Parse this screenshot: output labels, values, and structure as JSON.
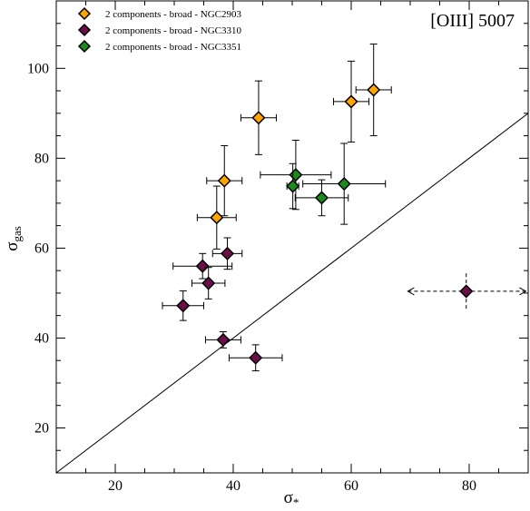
{
  "chart_data": {
    "type": "scatter",
    "title": "[OIII] 5007",
    "xlabel": "σ",
    "xlabel_sub": "*",
    "ylabel": "σ",
    "ylabel_sub": "gas",
    "xlim": [
      10,
      90
    ],
    "ylim": [
      10,
      115
    ],
    "xticks": [
      20,
      40,
      60,
      80
    ],
    "yticks": [
      20,
      40,
      60,
      80,
      100
    ],
    "grid": false,
    "legend_position": "top-left",
    "reference_line": {
      "label": "",
      "x": [
        10,
        90
      ],
      "y": [
        10,
        90
      ]
    },
    "series": [
      {
        "name": "2 components - broad - NGC2903",
        "color": "#ffa500",
        "points": [
          {
            "x": 44.3,
            "y": 89.0,
            "xerr": 3.0,
            "yerr": 8.2
          },
          {
            "x": 60.0,
            "y": 92.6,
            "xerr": 3.0,
            "yerr": 9.0
          },
          {
            "x": 63.8,
            "y": 95.2,
            "xerr": 3.0,
            "yerr": 10.2
          },
          {
            "x": 38.5,
            "y": 75.0,
            "xerr": 3.0,
            "yerr": 7.8
          },
          {
            "x": 37.2,
            "y": 66.8,
            "xerr": 3.3,
            "yerr": 7.0
          }
        ]
      },
      {
        "name": "2 components - broad - NGC3310",
        "color": "#6b0f4b",
        "points": [
          {
            "x": 34.8,
            "y": 56.0,
            "xerr": 5.0,
            "yerr": 2.8
          },
          {
            "x": 35.8,
            "y": 52.2,
            "xerr": 2.8,
            "yerr": 3.5
          },
          {
            "x": 39.0,
            "y": 58.8,
            "xerr": 2.5,
            "yerr": 3.5
          },
          {
            "x": 31.5,
            "y": 47.2,
            "xerr": 3.5,
            "yerr": 3.3
          },
          {
            "x": 38.3,
            "y": 39.6,
            "xerr": 3.0,
            "yerr": 1.8
          },
          {
            "x": 43.8,
            "y": 35.6,
            "xerr": 4.5,
            "yerr": 2.9
          }
        ]
      },
      {
        "name": "2 components - broad - NGC3351",
        "color": "#1a8a1a",
        "points": [
          {
            "x": 50.6,
            "y": 76.3,
            "xerr": 6.0,
            "yerr": 7.7
          },
          {
            "x": 50.1,
            "y": 73.8,
            "xerr": 1.0,
            "yerr": 5.0
          },
          {
            "x": 55.0,
            "y": 71.2,
            "xerr": 4.5,
            "yerr": 4.0
          },
          {
            "x": 58.8,
            "y": 74.3,
            "xerr": 7.0,
            "yerr": 9.0
          }
        ]
      }
    ],
    "special_point": {
      "color": "#6b0f4b",
      "x": 79.5,
      "y": 50.4,
      "x_range": [
        69.6,
        89.6
      ],
      "yerr": 4.0,
      "dashed": true
    }
  }
}
